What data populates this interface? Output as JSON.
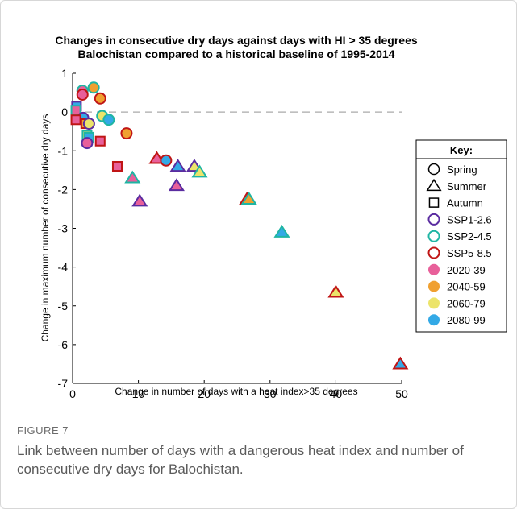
{
  "caption": {
    "label": "FIGURE 7",
    "text": "Link between number of days with a dangerous heat index and number of consecutive dry days for Balochistan."
  },
  "colors": {
    "ssp126": "#5a2ca0",
    "ssp245": "#1fb5a3",
    "ssp585": "#c01515",
    "p2020": "#e8609a",
    "p2040": "#f0a030",
    "p2060": "#ece46a",
    "p2080": "#33a9e6"
  },
  "legend": {
    "title": "Key:",
    "seasons": [
      {
        "shape": "circle",
        "label": "Spring"
      },
      {
        "shape": "triangle",
        "label": "Summer"
      },
      {
        "shape": "square",
        "label": "Autumn"
      }
    ],
    "scenarios": [
      {
        "key": "ssp126",
        "label": "SSP1-2.6"
      },
      {
        "key": "ssp245",
        "label": "SSP2-4.5"
      },
      {
        "key": "ssp585",
        "label": "SSP5-8.5"
      }
    ],
    "periods": [
      {
        "key": "p2020",
        "label": "2020-39"
      },
      {
        "key": "p2040",
        "label": "2040-59"
      },
      {
        "key": "p2060",
        "label": "2060-79"
      },
      {
        "key": "p2080",
        "label": "2080-99"
      }
    ]
  },
  "chart_data": {
    "type": "scatter",
    "title": "Changes in consecutive dry days against days with HI > 35 degrees",
    "subtitle": "Balochistan compared to a historical baseline of 1995-2014",
    "xlabel": "Change in number of days with a heat index>35 degrees",
    "ylabel": "Change in maximum number of consecutive dry days",
    "xlim": [
      0,
      50
    ],
    "ylim": [
      -7,
      1
    ],
    "xticks": [
      0,
      10,
      20,
      30,
      40,
      50
    ],
    "yticks": [
      -7,
      -6,
      -5,
      -4,
      -3,
      -2,
      -1,
      0,
      1
    ],
    "reference_line_y": 0,
    "grid": false,
    "legend_position": "right",
    "points": [
      {
        "x": 1.5,
        "y": 0.55,
        "shape": "circle",
        "scenario": "ssp245",
        "period": "p2020"
      },
      {
        "x": 3.2,
        "y": 0.63,
        "shape": "circle",
        "scenario": "ssp245",
        "period": "p2040"
      },
      {
        "x": 1.5,
        "y": 0.45,
        "shape": "circle",
        "scenario": "ssp585",
        "period": "p2020"
      },
      {
        "x": 4.2,
        "y": 0.35,
        "shape": "circle",
        "scenario": "ssp585",
        "period": "p2040"
      },
      {
        "x": 0.6,
        "y": 0.15,
        "shape": "square",
        "scenario": "ssp126",
        "period": "p2080"
      },
      {
        "x": 0.5,
        "y": 0.05,
        "shape": "square",
        "scenario": "ssp245",
        "period": "p2020"
      },
      {
        "x": 1.6,
        "y": -0.15,
        "shape": "circle",
        "scenario": "ssp126",
        "period": "p2080"
      },
      {
        "x": 4.5,
        "y": -0.1,
        "shape": "circle",
        "scenario": "ssp245",
        "period": "p2060"
      },
      {
        "x": 5.5,
        "y": -0.2,
        "shape": "circle",
        "scenario": "ssp245",
        "period": "p2080"
      },
      {
        "x": 0.5,
        "y": -0.2,
        "shape": "square",
        "scenario": "ssp585",
        "period": "p2020"
      },
      {
        "x": 2.0,
        "y": -0.3,
        "shape": "square",
        "scenario": "ssp585",
        "period": "p2040"
      },
      {
        "x": 2.5,
        "y": -0.3,
        "shape": "circle",
        "scenario": "ssp126",
        "period": "p2060"
      },
      {
        "x": 8.2,
        "y": -0.55,
        "shape": "circle",
        "scenario": "ssp585",
        "period": "p2040"
      },
      {
        "x": 2.2,
        "y": -0.6,
        "shape": "square",
        "scenario": "ssp245",
        "period": "p2060"
      },
      {
        "x": 2.5,
        "y": -0.65,
        "shape": "square",
        "scenario": "ssp245",
        "period": "p2080"
      },
      {
        "x": 4.2,
        "y": -0.75,
        "shape": "square",
        "scenario": "ssp585",
        "period": "p2020"
      },
      {
        "x": 2.2,
        "y": -0.8,
        "shape": "circle",
        "scenario": "ssp126",
        "period": "p2020"
      },
      {
        "x": 6.8,
        "y": -1.4,
        "shape": "square",
        "scenario": "ssp585",
        "period": "p2020"
      },
      {
        "x": 12.8,
        "y": -1.2,
        "shape": "triangle",
        "scenario": "ssp585",
        "period": "p2020"
      },
      {
        "x": 14.2,
        "y": -1.25,
        "shape": "circle",
        "scenario": "ssp585",
        "period": "p2080"
      },
      {
        "x": 16.0,
        "y": -1.4,
        "shape": "triangle",
        "scenario": "ssp126",
        "period": "p2080"
      },
      {
        "x": 18.5,
        "y": -1.4,
        "shape": "triangle",
        "scenario": "ssp126",
        "period": "p2060"
      },
      {
        "x": 19.3,
        "y": -1.55,
        "shape": "triangle",
        "scenario": "ssp245",
        "period": "p2060"
      },
      {
        "x": 9.1,
        "y": -1.7,
        "shape": "triangle",
        "scenario": "ssp245",
        "period": "p2020"
      },
      {
        "x": 15.8,
        "y": -1.9,
        "shape": "triangle",
        "scenario": "ssp126",
        "period": "p2020"
      },
      {
        "x": 10.2,
        "y": -2.3,
        "shape": "triangle",
        "scenario": "ssp126",
        "period": "p2020"
      },
      {
        "x": 26.5,
        "y": -2.25,
        "shape": "triangle",
        "scenario": "ssp585",
        "period": "p2040"
      },
      {
        "x": 26.8,
        "y": -2.25,
        "shape": "triangle",
        "scenario": "ssp245",
        "period": "p2040"
      },
      {
        "x": 31.8,
        "y": -3.1,
        "shape": "triangle",
        "scenario": "ssp245",
        "period": "p2080"
      },
      {
        "x": 40.0,
        "y": -4.65,
        "shape": "triangle",
        "scenario": "ssp585",
        "period": "p2060"
      },
      {
        "x": 49.8,
        "y": -6.5,
        "shape": "triangle",
        "scenario": "ssp585",
        "period": "p2080"
      }
    ]
  }
}
